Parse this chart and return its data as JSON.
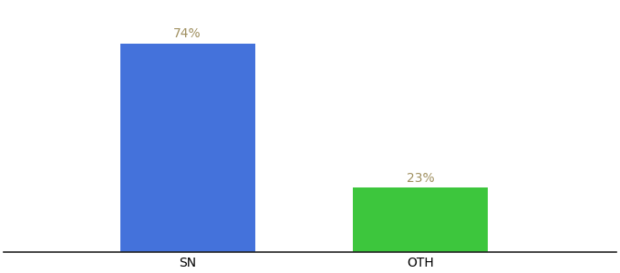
{
  "categories": [
    "SN",
    "OTH"
  ],
  "values": [
    74,
    23
  ],
  "bar_colors": [
    "#4472db",
    "#3dc63d"
  ],
  "label_texts": [
    "74%",
    "23%"
  ],
  "label_color": "#a09060",
  "ylim": [
    0,
    88
  ],
  "background_color": "#ffffff",
  "bar_width": 0.22,
  "label_fontsize": 10,
  "tick_fontsize": 10,
  "xlim": [
    0.0,
    1.0
  ]
}
